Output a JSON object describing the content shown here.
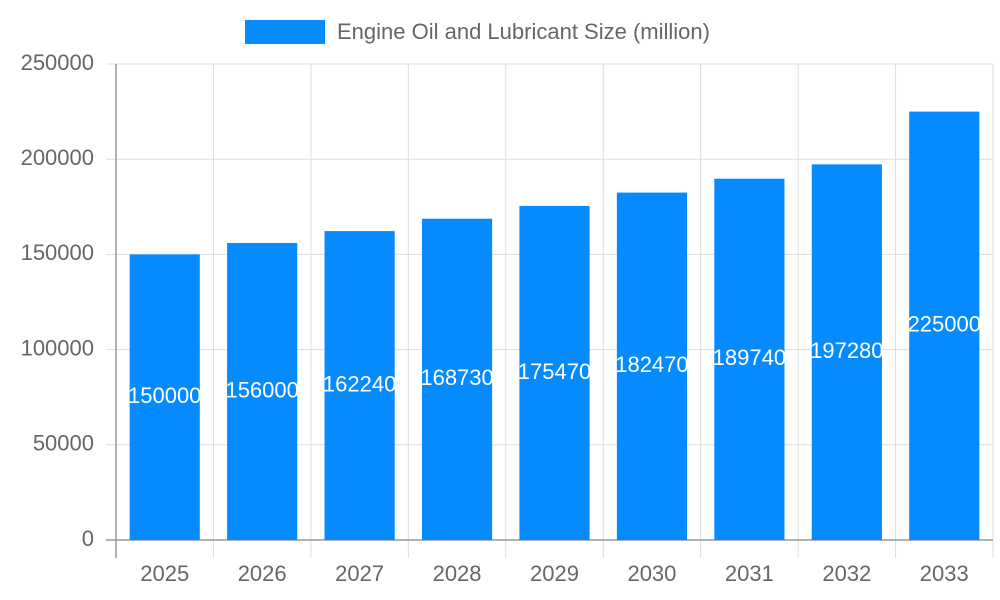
{
  "chart_data": {
    "type": "bar",
    "categories": [
      "2025",
      "2026",
      "2027",
      "2028",
      "2029",
      "2030",
      "2031",
      "2032",
      "2033"
    ],
    "series": [
      {
        "name": "Engine Oil and Lubricant Size (million)",
        "color": "#068bff",
        "values": [
          150000,
          156000,
          162240,
          168730,
          175470,
          182470,
          189740,
          197280,
          225000
        ]
      }
    ],
    "ylim": [
      0,
      250000
    ],
    "yticks": [
      0,
      50000,
      100000,
      150000,
      200000,
      250000
    ],
    "grid": true,
    "legend": "top"
  }
}
